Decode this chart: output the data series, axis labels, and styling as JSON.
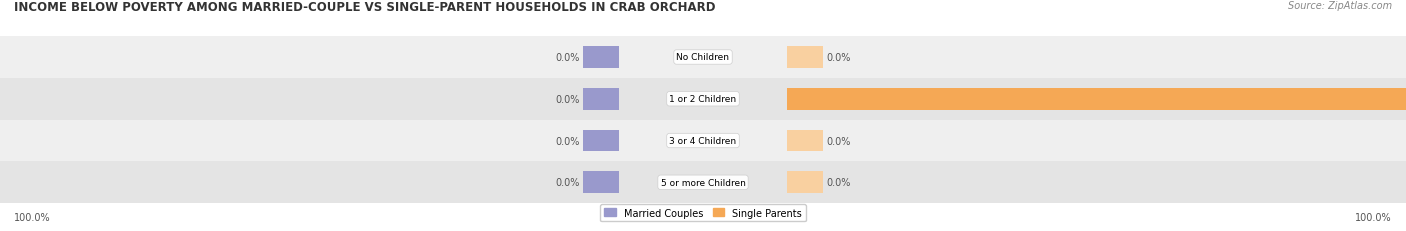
{
  "title": "INCOME BELOW POVERTY AMONG MARRIED-COUPLE VS SINGLE-PARENT HOUSEHOLDS IN CRAB ORCHARD",
  "source": "Source: ZipAtlas.com",
  "categories": [
    "No Children",
    "1 or 2 Children",
    "3 or 4 Children",
    "5 or more Children"
  ],
  "married_values": [
    0.0,
    0.0,
    0.0,
    0.0
  ],
  "single_values": [
    0.0,
    100.0,
    0.0,
    0.0
  ],
  "married_color": "#9999cc",
  "single_color": "#f5a855",
  "single_color_light": "#f9d0a0",
  "row_bg_colors": [
    "#efefef",
    "#e4e4e4"
  ],
  "title_fontsize": 8.5,
  "source_fontsize": 7,
  "label_fontsize": 7,
  "category_fontsize": 6.5,
  "xlim_left": -100,
  "xlim_right": 100,
  "legend_married": "Married Couples",
  "legend_single": "Single Parents",
  "stub_married": 5,
  "stub_single": 5
}
